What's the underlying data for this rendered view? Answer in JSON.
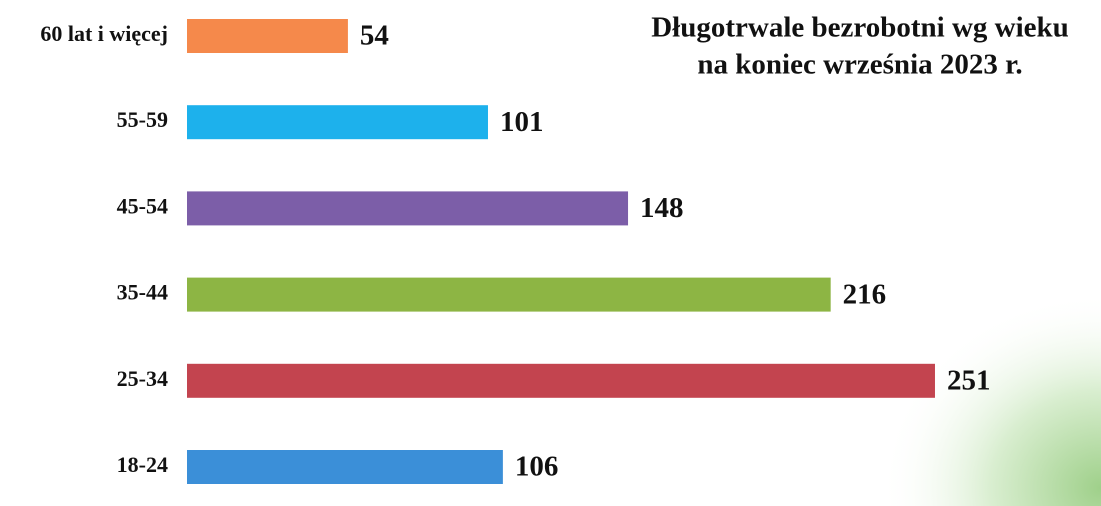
{
  "chart_data": {
    "type": "bar",
    "orientation": "horizontal",
    "title": [
      "Długotrwale bezrobotni wg wieku",
      "na koniec września 2023 r."
    ],
    "categories": [
      "60 lat i więcej",
      "55-59",
      "45-54",
      "35-44",
      "25-34",
      "18-24"
    ],
    "values": [
      54,
      101,
      148,
      216,
      251,
      106
    ],
    "colors": [
      "#f5894b",
      "#1db1ec",
      "#7c5ea8",
      "#8db544",
      "#c3444f",
      "#3b8fd8"
    ]
  }
}
